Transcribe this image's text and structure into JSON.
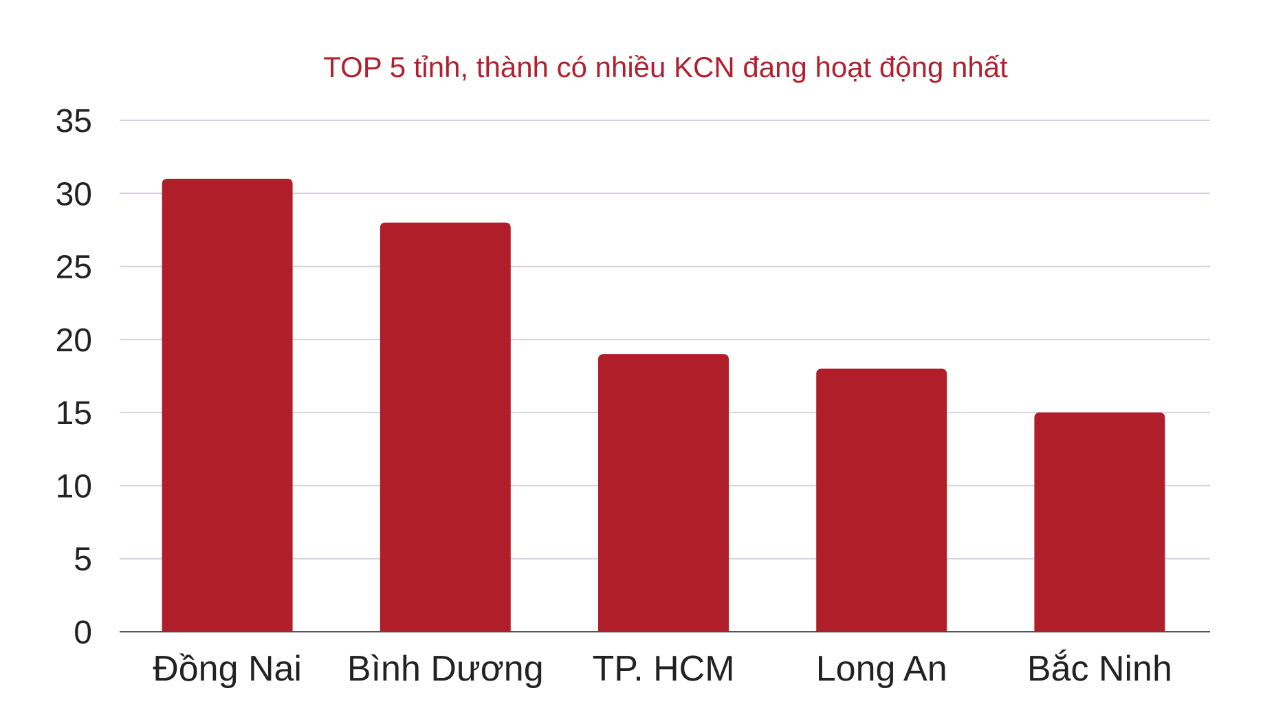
{
  "chart_data": {
    "type": "bar",
    "title": "TOP 5 tỉnh, thành có nhiều KCN đang hoạt động nhất",
    "categories": [
      "Đồng Nai",
      "Bình Dương",
      "TP. HCM",
      "Long An",
      "Bắc Ninh"
    ],
    "values": [
      31,
      28,
      19,
      18,
      15
    ],
    "xlabel": "",
    "ylabel": "",
    "ylim": [
      0,
      35
    ],
    "yticks": [
      0,
      5,
      10,
      15,
      20,
      25,
      30,
      35
    ],
    "grid": true,
    "legend": "none",
    "bar_color": "#b01e2a",
    "title_color": "#b22030"
  }
}
